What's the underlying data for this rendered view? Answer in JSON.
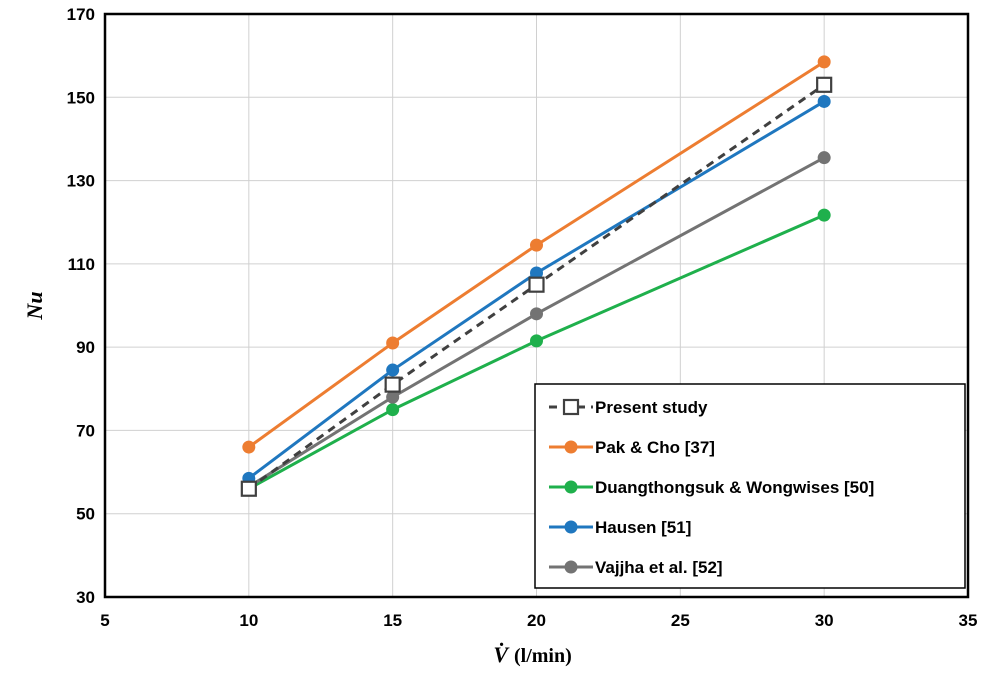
{
  "chart_data": {
    "type": "line",
    "xlabel": "V̇",
    "xlabel_unit": "(l/min)",
    "ylabel": "Nu",
    "xlim": [
      5,
      35
    ],
    "ylim": [
      30,
      170
    ],
    "xticks": [
      5,
      10,
      15,
      20,
      25,
      30,
      35
    ],
    "yticks": [
      30,
      50,
      70,
      90,
      110,
      130,
      150,
      170
    ],
    "grid": true,
    "legend_position": "bottom-right",
    "series": [
      {
        "name": "Present study",
        "color": "#404040",
        "dashed": true,
        "marker": "square-open",
        "x": [
          10,
          15,
          20,
          30
        ],
        "y": [
          56,
          81,
          105,
          153
        ]
      },
      {
        "name": "Pak & Cho [37]",
        "color": "#ED7D31",
        "dashed": false,
        "marker": "circle",
        "x": [
          10,
          15,
          20,
          30
        ],
        "y": [
          66,
          91,
          114.5,
          158.5
        ]
      },
      {
        "name": "Duangthongsuk & Wongwises [50]",
        "color": "#1FB04C",
        "dashed": false,
        "marker": "circle",
        "x": [
          10,
          15,
          20,
          30
        ],
        "y": [
          56,
          75,
          91.5,
          121.7
        ]
      },
      {
        "name": "Hausen [51]",
        "color": "#1F77BF",
        "dashed": false,
        "marker": "circle",
        "x": [
          10,
          15,
          20,
          30
        ],
        "y": [
          58.5,
          84.5,
          107.8,
          149
        ]
      },
      {
        "name": "Vajjha et al. [52]",
        "color": "#737373",
        "dashed": false,
        "marker": "circle",
        "x": [
          10,
          15,
          20,
          30
        ],
        "y": [
          56.5,
          78,
          98,
          135.5
        ]
      }
    ]
  }
}
